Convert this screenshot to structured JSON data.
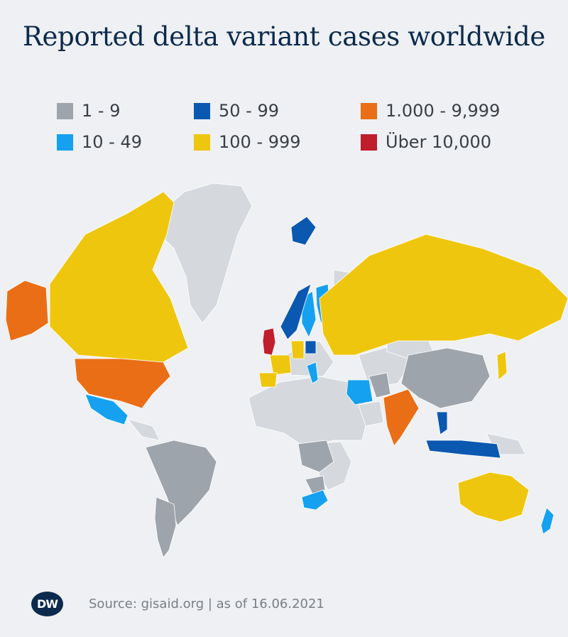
{
  "title": "Reported delta variant cases worldwide",
  "legend": [
    {
      "label": "1 - 9",
      "color": "#9ea4ab"
    },
    {
      "label": "10 - 49",
      "color": "#15a1f0"
    },
    {
      "label": "50 - 99",
      "color": "#0b58b0"
    },
    {
      "label": "100 - 999",
      "color": "#efc60e"
    },
    {
      "label": "1.000 - 9,999",
      "color": "#ea6e16"
    },
    {
      "label": "Über 10,000",
      "color": "#bf1e2d"
    }
  ],
  "no_data_color": "#d5d9de",
  "footer": {
    "logo": "DW",
    "source": "Source: gisaid.org | as of 16.06.2021"
  }
}
